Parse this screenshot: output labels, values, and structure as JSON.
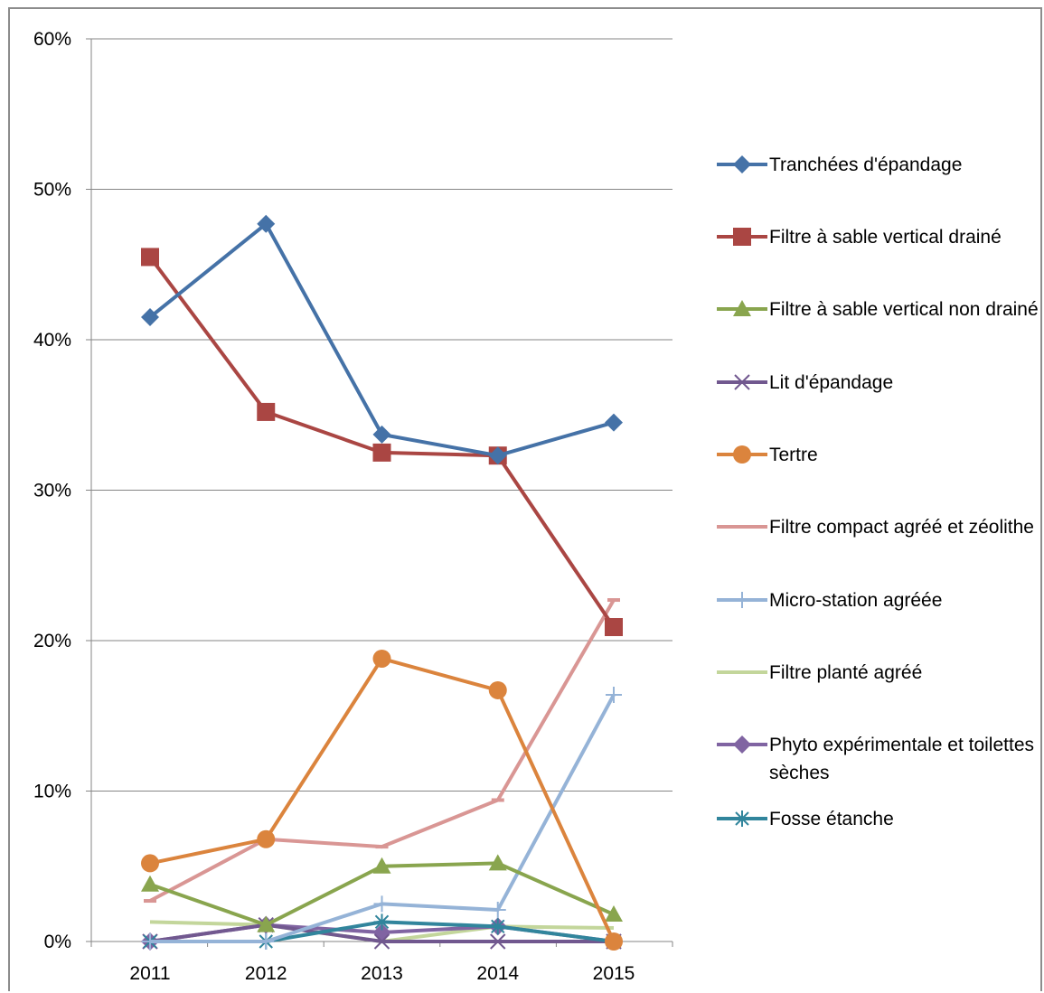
{
  "chart_data": {
    "type": "line",
    "categories": [
      "2011",
      "2012",
      "2013",
      "2014",
      "2015"
    ],
    "ylim": [
      0,
      60
    ],
    "yticks": [
      "0%",
      "10%",
      "20%",
      "30%",
      "40%",
      "50%",
      "60%"
    ],
    "grid": true,
    "legend_position": "right",
    "series": [
      {
        "name": "Tranchées d'épandage",
        "color": "#4572A7",
        "marker": "diamond",
        "values": [
          41.5,
          47.7,
          33.7,
          32.3,
          34.5
        ]
      },
      {
        "name": "Filtre à sable vertical drainé",
        "color": "#AA4643",
        "marker": "square",
        "values": [
          45.5,
          35.2,
          32.5,
          32.3,
          20.9
        ]
      },
      {
        "name": "Filtre à sable vertical non drainé",
        "color": "#89A54E",
        "marker": "triangle",
        "values": [
          3.8,
          1.1,
          5.0,
          5.2,
          1.8
        ]
      },
      {
        "name": "Lit d'épandage",
        "color": "#71588F",
        "marker": "x",
        "values": [
          0.0,
          1.1,
          0.0,
          0.0,
          0.0
        ]
      },
      {
        "name": "Tertre",
        "color": "#DB843D",
        "marker": "circle",
        "values": [
          5.2,
          6.8,
          18.8,
          16.7,
          0.0
        ]
      },
      {
        "name": "Filtre compact agréé et zéolithe",
        "color": "#D99694",
        "marker": "dash",
        "values": [
          2.7,
          6.8,
          6.3,
          9.4,
          22.7
        ]
      },
      {
        "name": "Micro-station agréée",
        "color": "#95B3D7",
        "marker": "plus",
        "values": [
          0.0,
          0.0,
          2.5,
          2.1,
          16.4
        ]
      },
      {
        "name": "Filtre planté agréé",
        "color": "#C3D69B",
        "marker": "none",
        "values": [
          1.3,
          1.1,
          0.0,
          1.0,
          0.9
        ]
      },
      {
        "name": "Phyto expérimentale et toilettes sèches",
        "color": "#8064A2",
        "marker": "diamond",
        "values": [
          0.0,
          1.1,
          0.6,
          1.0,
          0.0
        ]
      },
      {
        "name": "Fosse étanche",
        "color": "#31859C",
        "marker": "star",
        "values": [
          0.0,
          0.0,
          1.3,
          1.0,
          0.0
        ]
      }
    ]
  }
}
